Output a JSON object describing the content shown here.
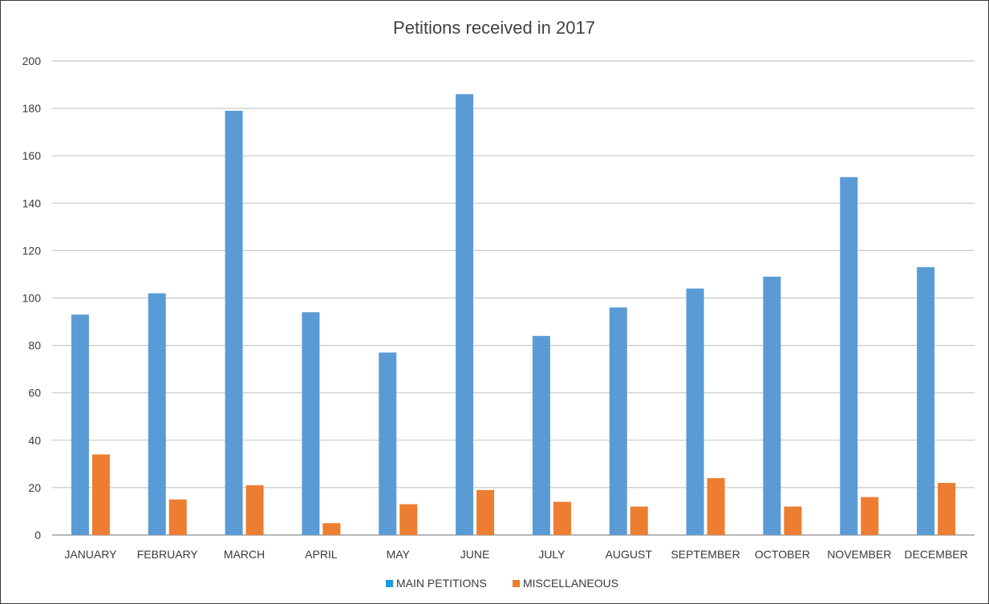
{
  "chart_data": {
    "type": "bar",
    "title": "Petitions received in 2017",
    "xlabel": "",
    "ylabel": "",
    "ylim": [
      0,
      200
    ],
    "yticks": [
      0,
      20,
      40,
      60,
      80,
      100,
      120,
      140,
      160,
      180,
      200
    ],
    "grid": true,
    "legend_position": "bottom",
    "categories": [
      "JANUARY",
      "FEBRUARY",
      "MARCH",
      "APRIL",
      "MAY",
      "JUNE",
      "JULY",
      "AUGUST",
      "SEPTEMBER",
      "OCTOBER",
      "NOVEMBER",
      "DECEMBER"
    ],
    "series": [
      {
        "name": "MAIN PETITIONS",
        "color": "#5b9bd5",
        "values": [
          93,
          102,
          179,
          94,
          77,
          186,
          84,
          96,
          104,
          109,
          151,
          113
        ]
      },
      {
        "name": "MISCELLANEOUS",
        "color": "#ed7d31",
        "values": [
          34,
          15,
          21,
          5,
          13,
          19,
          14,
          12,
          24,
          12,
          16,
          22
        ]
      }
    ],
    "legend_marker_color": "#1a9be0"
  }
}
